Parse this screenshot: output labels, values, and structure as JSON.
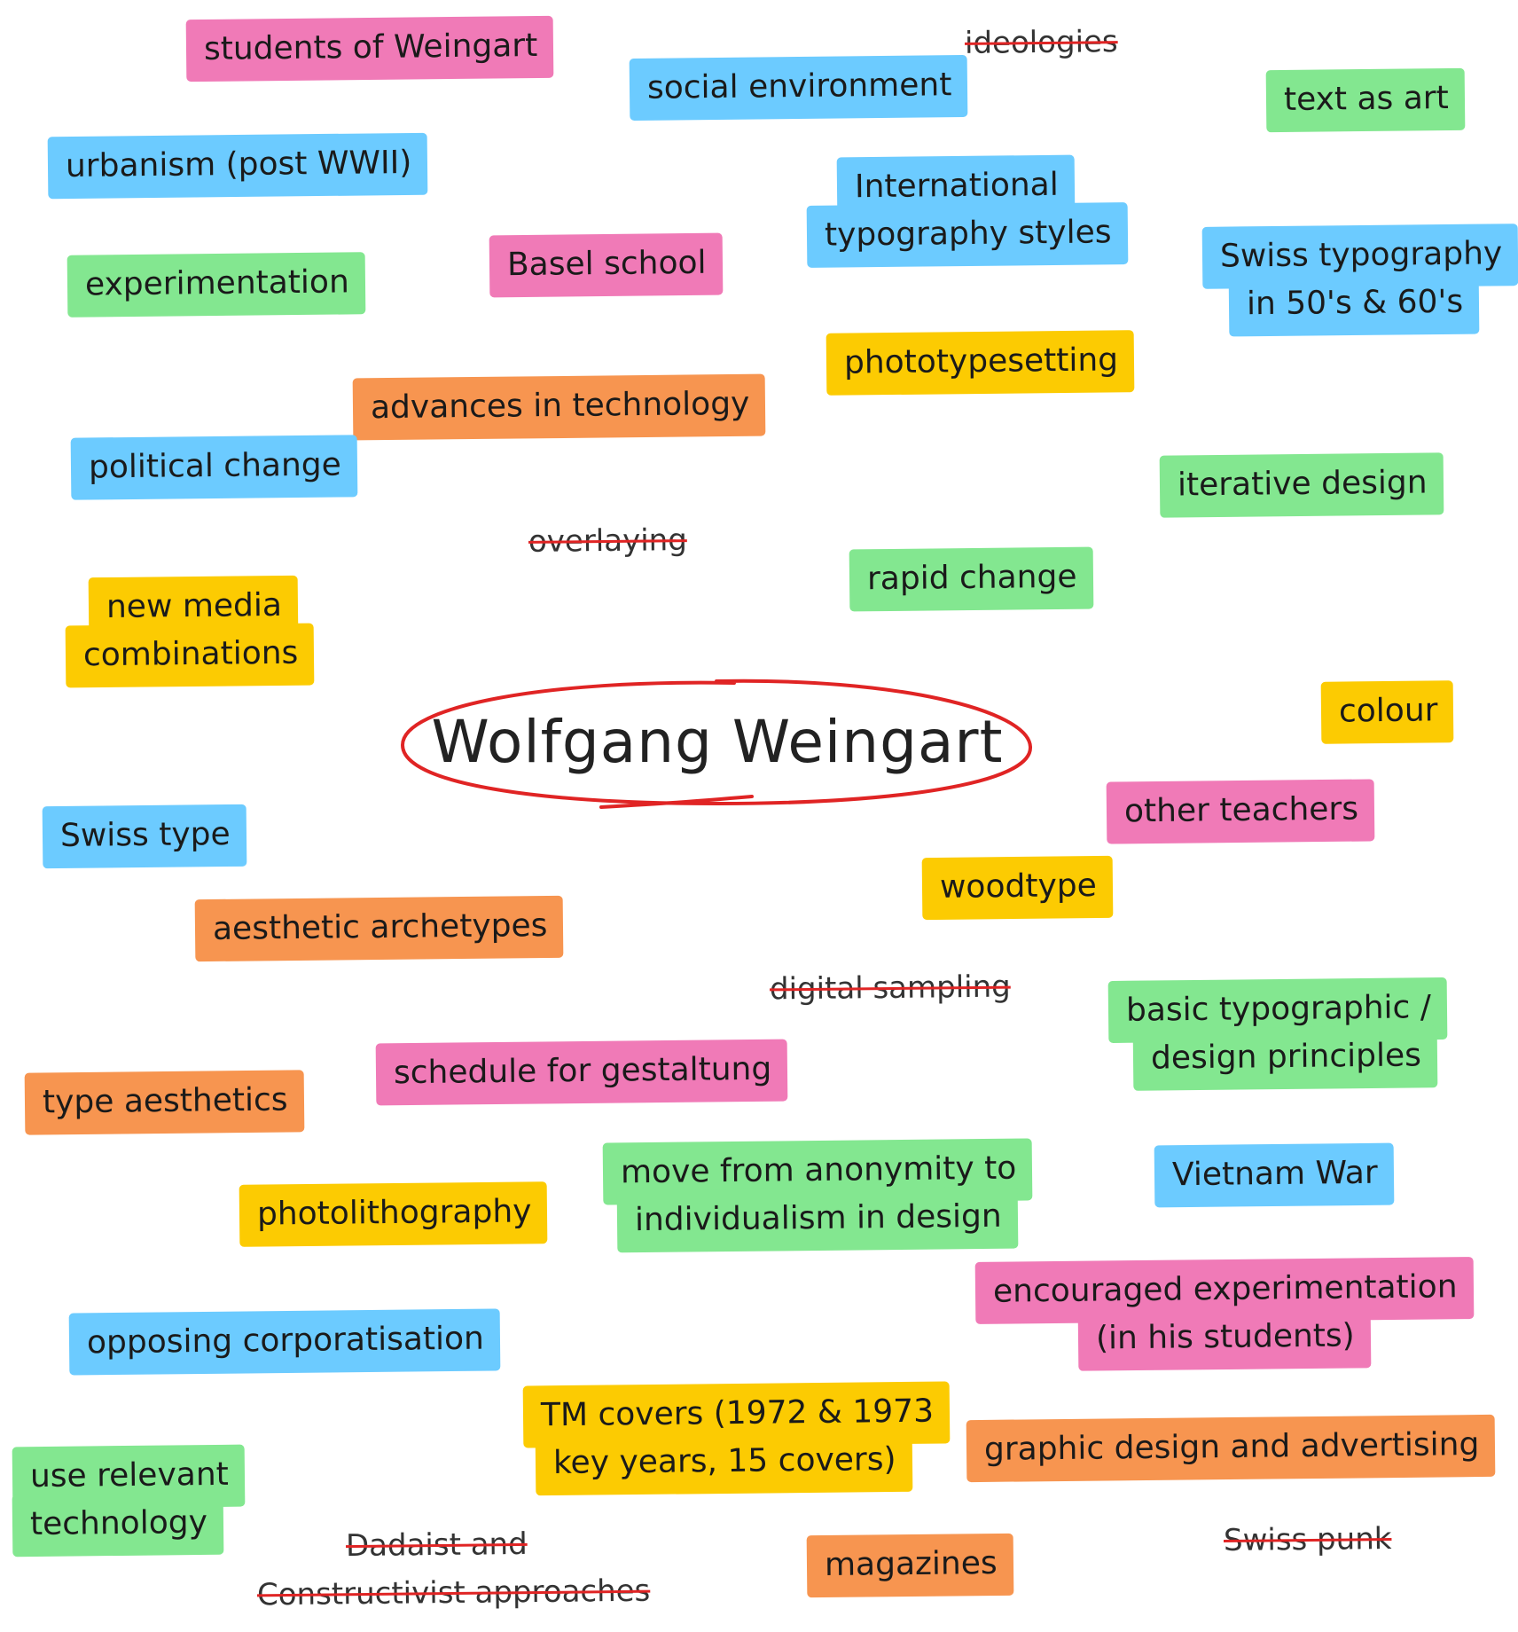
{
  "title": "Wolfgang Weingart",
  "colors": {
    "pink": "#f07ab7",
    "blue": "#6ccbff",
    "green": "#83e790",
    "yellow": "#fccb02",
    "orange": "#f79550",
    "ellipse": "#e02424"
  },
  "tags": [
    {
      "id": "students-of-weingart",
      "color": "pink",
      "lines": [
        "students of Weingart"
      ]
    },
    {
      "id": "social-environment",
      "color": "blue",
      "lines": [
        "social environment"
      ]
    },
    {
      "id": "ideologies",
      "color": "none",
      "struck": true,
      "lines": [
        "ideologies"
      ]
    },
    {
      "id": "text-as-art",
      "color": "green",
      "lines": [
        "text as art"
      ]
    },
    {
      "id": "urbanism-post-wwii",
      "color": "blue",
      "lines": [
        "urbanism (post WWII)"
      ]
    },
    {
      "id": "international-typography-styles",
      "color": "blue",
      "lines": [
        "International",
        "typography styles"
      ]
    },
    {
      "id": "basel-school",
      "color": "pink",
      "lines": [
        "Basel school"
      ]
    },
    {
      "id": "swiss-typography-50s-60s",
      "color": "blue",
      "lines": [
        "Swiss typography",
        "in 50's & 60's"
      ]
    },
    {
      "id": "experimentation",
      "color": "green",
      "lines": [
        "experimentation"
      ]
    },
    {
      "id": "phototypesetting",
      "color": "yellow",
      "lines": [
        "phototypesetting"
      ]
    },
    {
      "id": "advances-in-technology",
      "color": "orange",
      "lines": [
        "advances in technology"
      ]
    },
    {
      "id": "political-change",
      "color": "blue",
      "lines": [
        "political change"
      ]
    },
    {
      "id": "iterative-design",
      "color": "green",
      "lines": [
        "iterative design"
      ]
    },
    {
      "id": "overlaying",
      "color": "none",
      "struck": true,
      "lines": [
        "overlaying"
      ]
    },
    {
      "id": "rapid-change",
      "color": "green",
      "lines": [
        "rapid change"
      ]
    },
    {
      "id": "new-media-combinations",
      "color": "yellow",
      "lines": [
        "new media",
        "combinations"
      ]
    },
    {
      "id": "colour",
      "color": "yellow",
      "lines": [
        "colour"
      ]
    },
    {
      "id": "other-teachers",
      "color": "pink",
      "lines": [
        "other teachers"
      ]
    },
    {
      "id": "swiss-type",
      "color": "blue",
      "lines": [
        "Swiss type"
      ]
    },
    {
      "id": "woodtype",
      "color": "yellow",
      "lines": [
        "woodtype"
      ]
    },
    {
      "id": "aesthetic-archetypes",
      "color": "orange",
      "lines": [
        "aesthetic archetypes"
      ]
    },
    {
      "id": "digital-sampling",
      "color": "none",
      "struck": true,
      "lines": [
        "digital sampling"
      ]
    },
    {
      "id": "basic-typographic-design-principles",
      "color": "green",
      "lines": [
        "basic typographic /",
        "design principles"
      ]
    },
    {
      "id": "schedule-for-gestaltung",
      "color": "pink",
      "lines": [
        "schedule for gestaltung"
      ]
    },
    {
      "id": "type-aesthetics",
      "color": "orange",
      "lines": [
        "type aesthetics"
      ]
    },
    {
      "id": "move-from-anonymity",
      "color": "green",
      "lines": [
        "move from anonymity to",
        "individualism in design"
      ]
    },
    {
      "id": "vietnam-war",
      "color": "blue",
      "lines": [
        "Vietnam War"
      ]
    },
    {
      "id": "photolithography",
      "color": "yellow",
      "lines": [
        "photolithography"
      ]
    },
    {
      "id": "encouraged-experimentation",
      "color": "pink",
      "lines": [
        "encouraged experimentation",
        "(in his students)"
      ]
    },
    {
      "id": "opposing-corporatisation",
      "color": "blue",
      "lines": [
        "opposing corporatisation"
      ]
    },
    {
      "id": "tm-covers",
      "color": "yellow",
      "lines": [
        "TM covers (1972 & 1973",
        "key years, 15 covers)"
      ]
    },
    {
      "id": "graphic-design-and-advertising",
      "color": "orange",
      "lines": [
        "graphic design and advertising"
      ]
    },
    {
      "id": "use-relevant-technology",
      "color": "green",
      "lines": [
        "use relevant",
        "technology"
      ]
    },
    {
      "id": "dadaist-constructivist",
      "color": "none",
      "struck": true,
      "lines": [
        "Dadaist and",
        "Constructivist approaches"
      ]
    },
    {
      "id": "swiss-punk",
      "color": "none",
      "struck": true,
      "lines": [
        "Swiss punk"
      ]
    },
    {
      "id": "magazines",
      "color": "orange",
      "lines": [
        "magazines"
      ]
    }
  ]
}
